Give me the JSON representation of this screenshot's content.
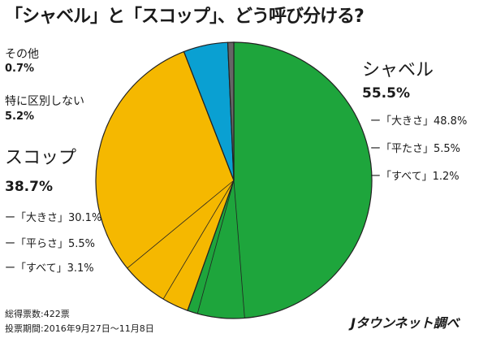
{
  "chart_data": {
    "type": "pie",
    "title": "「シャベル」と「スコップ」、どう呼び分ける?",
    "slices": [
      {
        "label": "シャベル",
        "value": 55.5,
        "color": "#1ea53c"
      },
      {
        "label": "スコップ",
        "value": 38.7,
        "color": "#f5b800"
      },
      {
        "label": "特に区別しない",
        "value": 5.2,
        "color": "#0aa0d2"
      },
      {
        "label": "その他",
        "value": 0.7,
        "color": "#666666"
      }
    ],
    "sub_slices": [
      {
        "parent": "シャベル",
        "label": "「大きさ」",
        "value": 48.8
      },
      {
        "parent": "シャベル",
        "label": "「平たさ」",
        "value": 5.5
      },
      {
        "parent": "シャベル",
        "label": "「すべて」",
        "value": 1.2
      },
      {
        "parent": "スコップ",
        "label": "「すべて」",
        "value": 3.1
      },
      {
        "parent": "スコップ",
        "label": "「平らさ」",
        "value": 5.5
      },
      {
        "parent": "スコップ",
        "label": "「大きさ」",
        "value": 30.1
      }
    ]
  },
  "labels": {
    "shovel": {
      "name": "シャベル",
      "pct": "55.5%",
      "subs": [
        "ー「大きさ」48.8%",
        "ー「平たさ」5.5%",
        "ー「すべて」1.2%"
      ]
    },
    "scoop": {
      "name": "スコップ",
      "pct": "38.7%",
      "subs": [
        "ー「大きさ」30.1%",
        "ー「平らさ」5.5%",
        "ー「すべて」3.1%"
      ]
    },
    "none": {
      "name": "特に区別しない",
      "pct": "5.2%"
    },
    "other": {
      "name": "その他",
      "pct": "0.7%"
    }
  },
  "notes": {
    "votes": "総得票数:422票",
    "period": "投票期間:2016年9月27日〜11月8日"
  },
  "brand": "Jタウンネット調べ"
}
